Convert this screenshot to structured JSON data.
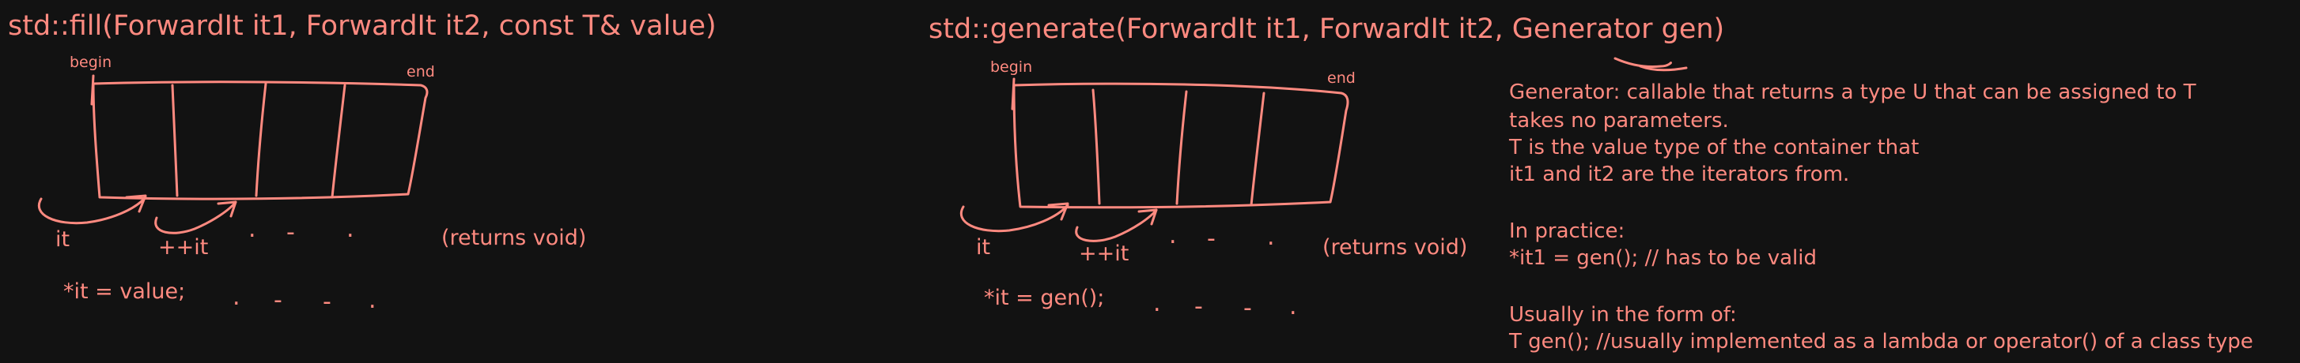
{
  "fill": {
    "signature": "std::fill(ForwardIt it1, ForwardIt it2, const T& value)",
    "begin_label": "begin",
    "end_label": "end",
    "it_label": "it",
    "next_label": "++it",
    "ellipsis": [
      ".",
      "-",
      "."
    ],
    "returns": "(returns void)",
    "assignment": "*it = value;",
    "assignment_ellipsis": [
      ".",
      "-",
      "-",
      "."
    ]
  },
  "generate": {
    "signature": "std::generate(ForwardIt it1, ForwardIt it2, Generator gen)",
    "begin_label": "begin",
    "end_label": "end",
    "it_label": "it",
    "next_label": "++it",
    "ellipsis": [
      ".",
      "-",
      "."
    ],
    "returns": "(returns void)",
    "assignment": "*it = gen();",
    "assignment_ellipsis": [
      ".",
      "-",
      "-",
      "."
    ]
  },
  "notes": {
    "lines": [
      "Generator: callable that returns a type U that can be assigned to T",
      "takes no parameters.",
      "T is the value type of the container that",
      "it1 and it2 are the iterators from.",
      "In practice:",
      "*it1 = gen(); // has to be valid",
      "Usually in the form of:",
      "T gen(); //usually implemented as a lambda or operator() of a class type"
    ]
  },
  "colors": {
    "ink": "#ff8a80",
    "background": "#121212"
  }
}
